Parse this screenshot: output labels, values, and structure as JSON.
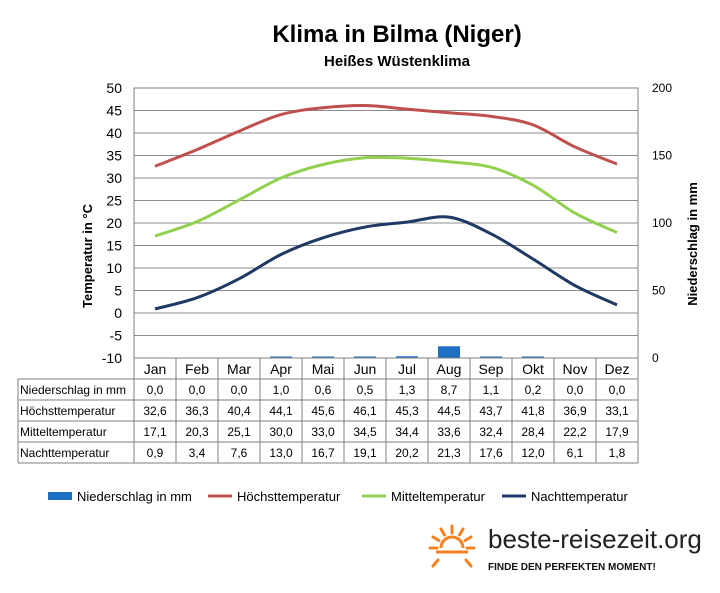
{
  "chart_data": {
    "type": "line",
    "title": "Klima in Bilma (Niger)",
    "subtitle": "Heißes Wüstenklima",
    "ylabel": "Temperatur in °C",
    "y2label": "Niederschlag in mm",
    "ylim": [
      -10,
      50
    ],
    "y2lim": [
      0,
      200
    ],
    "yticks": [
      "50",
      "45",
      "40",
      "35",
      "30",
      "25",
      "20",
      "15",
      "10",
      "5",
      "0",
      "-5",
      "-10"
    ],
    "y2ticks": [
      "200",
      "150",
      "100",
      "50",
      "0"
    ],
    "grid": true,
    "legend_position": "bottom",
    "categories": [
      "Jan",
      "Feb",
      "Mar",
      "Apr",
      "Mai",
      "Jun",
      "Jul",
      "Aug",
      "Sep",
      "Okt",
      "Nov",
      "Dez"
    ],
    "series": [
      {
        "name": "Niederschlag in mm",
        "type": "bar",
        "axis": "right",
        "color": "#1f6fc5",
        "values": [
          0.0,
          0.0,
          0.0,
          1.0,
          0.6,
          0.5,
          1.3,
          8.7,
          1.1,
          0.2,
          0.0,
          0.0
        ],
        "labels": [
          "0,0",
          "0,0",
          "0,0",
          "1,0",
          "0,6",
          "0,5",
          "1,3",
          "8,7",
          "1,1",
          "0,2",
          "0,0",
          "0,0"
        ]
      },
      {
        "name": "Höchsttemperatur",
        "type": "line",
        "axis": "left",
        "color": "#c0504d",
        "values": [
          32.6,
          36.3,
          40.4,
          44.1,
          45.6,
          46.1,
          45.3,
          44.5,
          43.7,
          41.8,
          36.9,
          33.1
        ],
        "labels": [
          "32,6",
          "36,3",
          "40,4",
          "44,1",
          "45,6",
          "46,1",
          "45,3",
          "44,5",
          "43,7",
          "41,8",
          "36,9",
          "33,1"
        ]
      },
      {
        "name": "Mitteltemperatur",
        "type": "line",
        "axis": "left",
        "color": "#92d050",
        "values": [
          17.1,
          20.3,
          25.1,
          30.0,
          33.0,
          34.5,
          34.4,
          33.6,
          32.4,
          28.4,
          22.2,
          17.9
        ],
        "labels": [
          "17,1",
          "20,3",
          "25,1",
          "30,0",
          "33,0",
          "34,5",
          "34,4",
          "33,6",
          "32,4",
          "28,4",
          "22,2",
          "17,9"
        ]
      },
      {
        "name": "Nachttemperatur",
        "type": "line",
        "axis": "left",
        "color": "#1f3864",
        "values": [
          0.9,
          3.4,
          7.6,
          13.0,
          16.7,
          19.1,
          20.2,
          21.3,
          17.6,
          12.0,
          6.1,
          1.8
        ],
        "labels": [
          "0,9",
          "3,4",
          "7,6",
          "13,0",
          "16,7",
          "19,1",
          "20,2",
          "21,3",
          "17,6",
          "12,0",
          "6,1",
          "1,8"
        ]
      }
    ]
  },
  "branding": {
    "site": "beste-reisezeit.org",
    "tagline": "FINDE DEN PERFEKTEN MOMENT!",
    "sun_color": "#f5821f",
    "icon": "sun-icon"
  }
}
